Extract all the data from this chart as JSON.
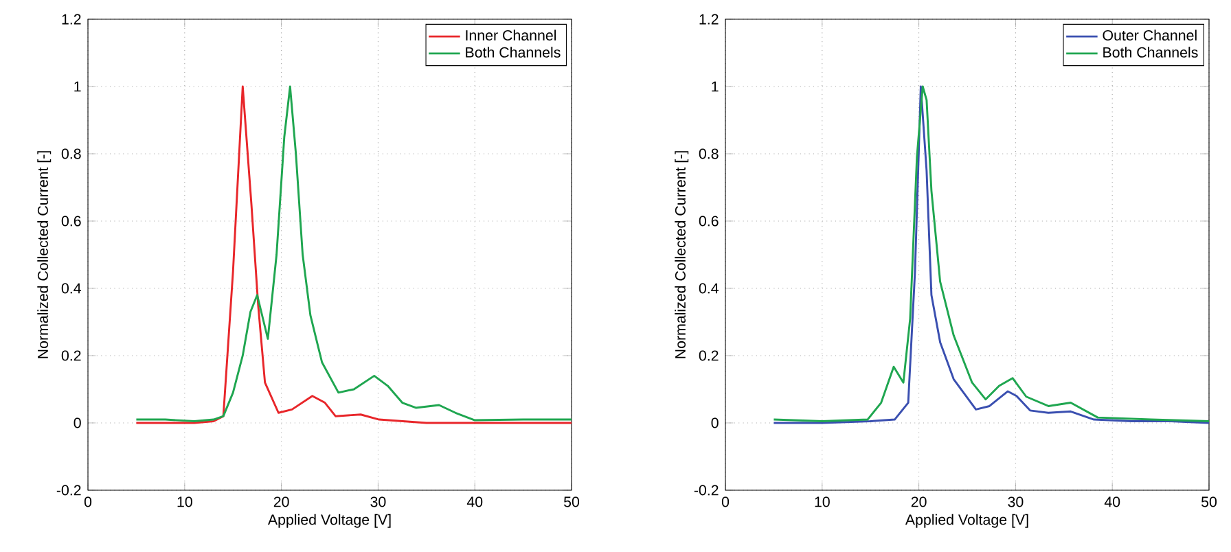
{
  "chart_data": [
    {
      "type": "line",
      "xlabel": "Applied Voltage [V]",
      "ylabel": "Normalized Collected Current [-]",
      "xlim": [
        0,
        50
      ],
      "ylim": [
        -0.2,
        1.2
      ],
      "xticks": [
        0,
        10,
        20,
        30,
        40,
        50
      ],
      "yticks": [
        -0.2,
        0,
        0.2,
        0.4,
        0.6,
        0.8,
        1,
        1.2
      ],
      "grid": true,
      "legend": "top right",
      "marker": "none",
      "line_style": "solid",
      "series": [
        {
          "name": "Inner Channel",
          "color": "#e8262a",
          "x": [
            5,
            8,
            11,
            13,
            14,
            15,
            16.0,
            16.9,
            17.6,
            18.3,
            19.7,
            21.1,
            23.2,
            24.5,
            25.6,
            28.2,
            30.1,
            35,
            40,
            45,
            50
          ],
          "values": [
            0,
            0,
            0,
            0.005,
            0.02,
            0.45,
            1.0,
            0.65,
            0.35,
            0.12,
            0.03,
            0.04,
            0.08,
            0.06,
            0.02,
            0.025,
            0.01,
            0,
            0,
            0,
            0
          ]
        },
        {
          "name": "Both Channels",
          "color": "#1fa650",
          "x": [
            5,
            8,
            11,
            13,
            14,
            15,
            16,
            16.8,
            17.5,
            18.6,
            19.5,
            20.3,
            20.9,
            21.5,
            22.2,
            23,
            24.2,
            25.9,
            27.5,
            29.6,
            31,
            32.5,
            33.9,
            36.3,
            38,
            40,
            45,
            50
          ],
          "values": [
            0.01,
            0.01,
            0.005,
            0.01,
            0.02,
            0.09,
            0.2,
            0.33,
            0.38,
            0.25,
            0.5,
            0.85,
            1.0,
            0.8,
            0.5,
            0.32,
            0.18,
            0.09,
            0.1,
            0.14,
            0.11,
            0.06,
            0.045,
            0.053,
            0.03,
            0.008,
            0.01,
            0.01
          ]
        }
      ]
    },
    {
      "type": "line",
      "xlabel": "Applied Voltage [V]",
      "ylabel": "Normalized Collected Current [-]",
      "xlim": [
        0,
        50
      ],
      "ylim": [
        -0.2,
        1.2
      ],
      "xticks": [
        0,
        10,
        20,
        30,
        40,
        50
      ],
      "yticks": [
        -0.2,
        0,
        0.2,
        0.4,
        0.6,
        0.8,
        1,
        1.2
      ],
      "grid": true,
      "legend": "top right",
      "marker": "none",
      "line_style": "solid",
      "series": [
        {
          "name": "Outer Channel",
          "color": "#3a4fb0",
          "x": [
            5,
            10,
            15,
            17.5,
            18.9,
            19.6,
            20.2,
            20.8,
            21.3,
            22.2,
            23.6,
            25.9,
            27.3,
            29.2,
            30.1,
            31.5,
            33.4,
            35.7,
            38.1,
            42,
            46,
            50
          ],
          "values": [
            0,
            0,
            0.005,
            0.01,
            0.06,
            0.45,
            1.0,
            0.75,
            0.38,
            0.24,
            0.13,
            0.04,
            0.05,
            0.094,
            0.08,
            0.037,
            0.03,
            0.034,
            0.01,
            0.005,
            0.005,
            0
          ]
        },
        {
          "name": "Both Channels",
          "color": "#1fa650",
          "x": [
            5,
            10,
            14.7,
            16.1,
            17.4,
            18.4,
            19.1,
            19.8,
            20.4,
            20.8,
            21.3,
            22.2,
            23.6,
            25.5,
            26.9,
            28.3,
            29.7,
            31.1,
            33.4,
            35.7,
            38.5,
            44,
            50
          ],
          "values": [
            0.01,
            0.005,
            0.01,
            0.06,
            0.167,
            0.12,
            0.31,
            0.79,
            1.0,
            0.96,
            0.69,
            0.42,
            0.26,
            0.12,
            0.07,
            0.11,
            0.133,
            0.078,
            0.05,
            0.06,
            0.016,
            0.01,
            0.005
          ]
        }
      ]
    }
  ]
}
